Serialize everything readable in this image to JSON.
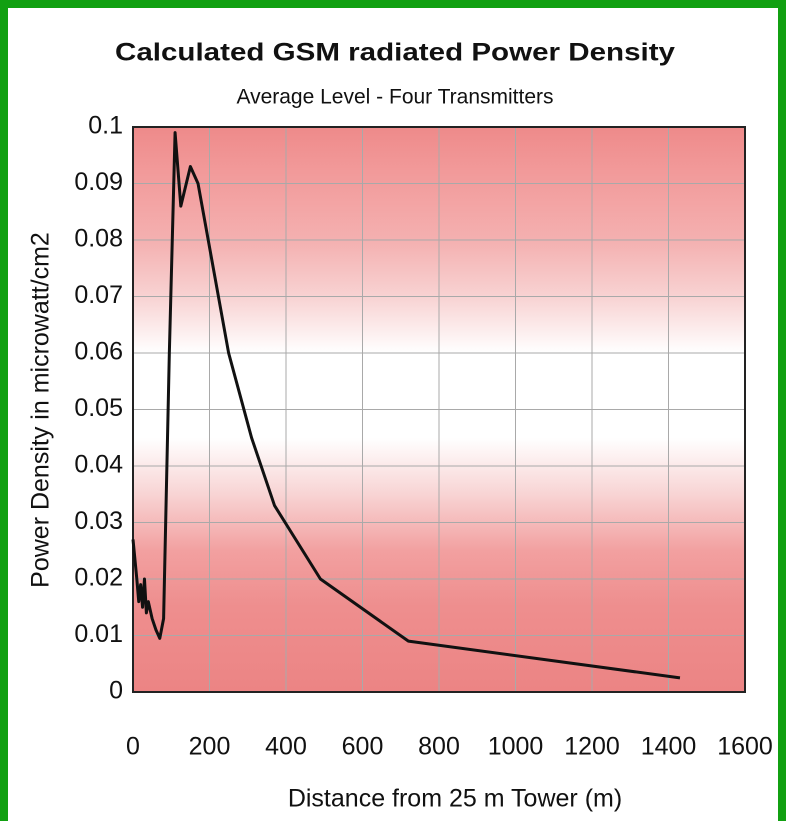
{
  "chart_data": {
    "type": "line",
    "title": "Calculated GSM radiated Power Density",
    "subtitle": "Average Level - Four Transmitters",
    "x_label": "Distance from 25 m Tower (m)",
    "y_label": "Power Density in microwatt/cm2",
    "series": [
      {
        "name": "Power Density",
        "color": "#111111",
        "x": [
          0,
          10,
          15,
          20,
          25,
          30,
          35,
          40,
          50,
          60,
          70,
          80,
          95,
          110,
          125,
          150,
          170,
          210,
          250,
          310,
          370,
          490,
          720,
          1430
        ],
        "values": [
          0.027,
          0.02,
          0.016,
          0.019,
          0.015,
          0.02,
          0.014,
          0.016,
          0.013,
          0.011,
          0.0095,
          0.013,
          0.06,
          0.099,
          0.086,
          0.093,
          0.09,
          0.075,
          0.06,
          0.045,
          0.033,
          0.02,
          0.009,
          0.0025
        ]
      }
    ],
    "xlim": [
      0,
      1600
    ],
    "xticks": [
      0,
      200,
      400,
      600,
      800,
      1000,
      1200,
      1400,
      1600
    ],
    "ylim": [
      0,
      0.1
    ],
    "yticks": [
      0,
      0.01,
      0.02,
      0.03,
      0.04,
      0.05,
      0.06,
      0.07,
      0.08,
      0.09,
      0.1
    ],
    "grid": true
  }
}
